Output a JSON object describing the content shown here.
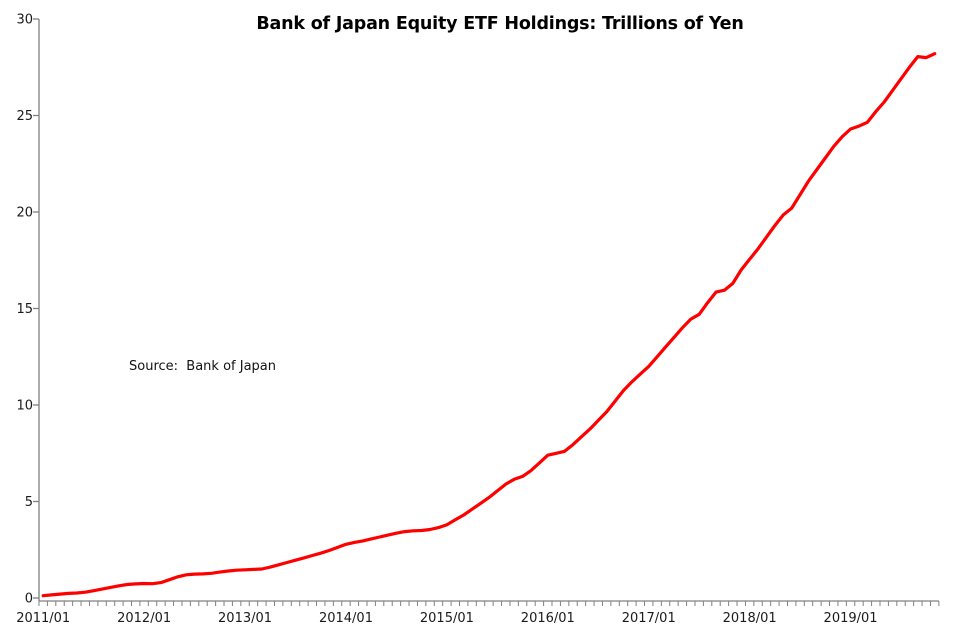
{
  "chart_data": {
    "type": "line",
    "title": "Bank of Japan Equity ETF Holdings: Trillions of Yen",
    "source_note": "Source:  Bank of Japan",
    "xlabel": "",
    "ylabel": "",
    "ylim": [
      0,
      30
    ],
    "y_ticks": [
      0,
      5,
      10,
      15,
      20,
      25,
      30
    ],
    "x_tick_labels": [
      "2011/01",
      "2012/01",
      "2013/01",
      "2014/01",
      "2015/01",
      "2016/01",
      "2017/01",
      "2018/01",
      "2019/01"
    ],
    "x_start_month": "2011/01",
    "x_end_month": "2019/11",
    "frequency": "monthly",
    "grid": false,
    "legend": "none",
    "line_color": "#FF0000",
    "axis_color": "#808080",
    "series": [
      {
        "name": "BoJ equity ETF holdings (trillions of yen)",
        "values": [
          0.12,
          0.16,
          0.2,
          0.24,
          0.26,
          0.3,
          0.38,
          0.46,
          0.55,
          0.63,
          0.7,
          0.73,
          0.75,
          0.74,
          0.8,
          0.95,
          1.1,
          1.2,
          1.24,
          1.25,
          1.28,
          1.34,
          1.4,
          1.44,
          1.46,
          1.48,
          1.5,
          1.6,
          1.72,
          1.84,
          1.96,
          2.08,
          2.2,
          2.32,
          2.46,
          2.62,
          2.78,
          2.88,
          2.96,
          3.06,
          3.16,
          3.26,
          3.36,
          3.44,
          3.48,
          3.5,
          3.55,
          3.65,
          3.8,
          4.05,
          4.3,
          4.6,
          4.9,
          5.2,
          5.55,
          5.9,
          6.15,
          6.3,
          6.6,
          7.0,
          7.4,
          7.5,
          7.6,
          7.95,
          8.35,
          8.75,
          9.2,
          9.65,
          10.2,
          10.75,
          11.2,
          11.6,
          12.0,
          12.5,
          13.0,
          13.5,
          14.0,
          14.45,
          14.7,
          15.3,
          15.85,
          15.95,
          16.3,
          17.0,
          17.55,
          18.1,
          18.7,
          19.3,
          19.85,
          20.2,
          20.9,
          21.6,
          22.2,
          22.8,
          23.4,
          23.9,
          24.3,
          24.45,
          24.65,
          25.2,
          25.7,
          26.3,
          26.9,
          27.5,
          28.05,
          28.0,
          28.2
        ]
      }
    ]
  }
}
